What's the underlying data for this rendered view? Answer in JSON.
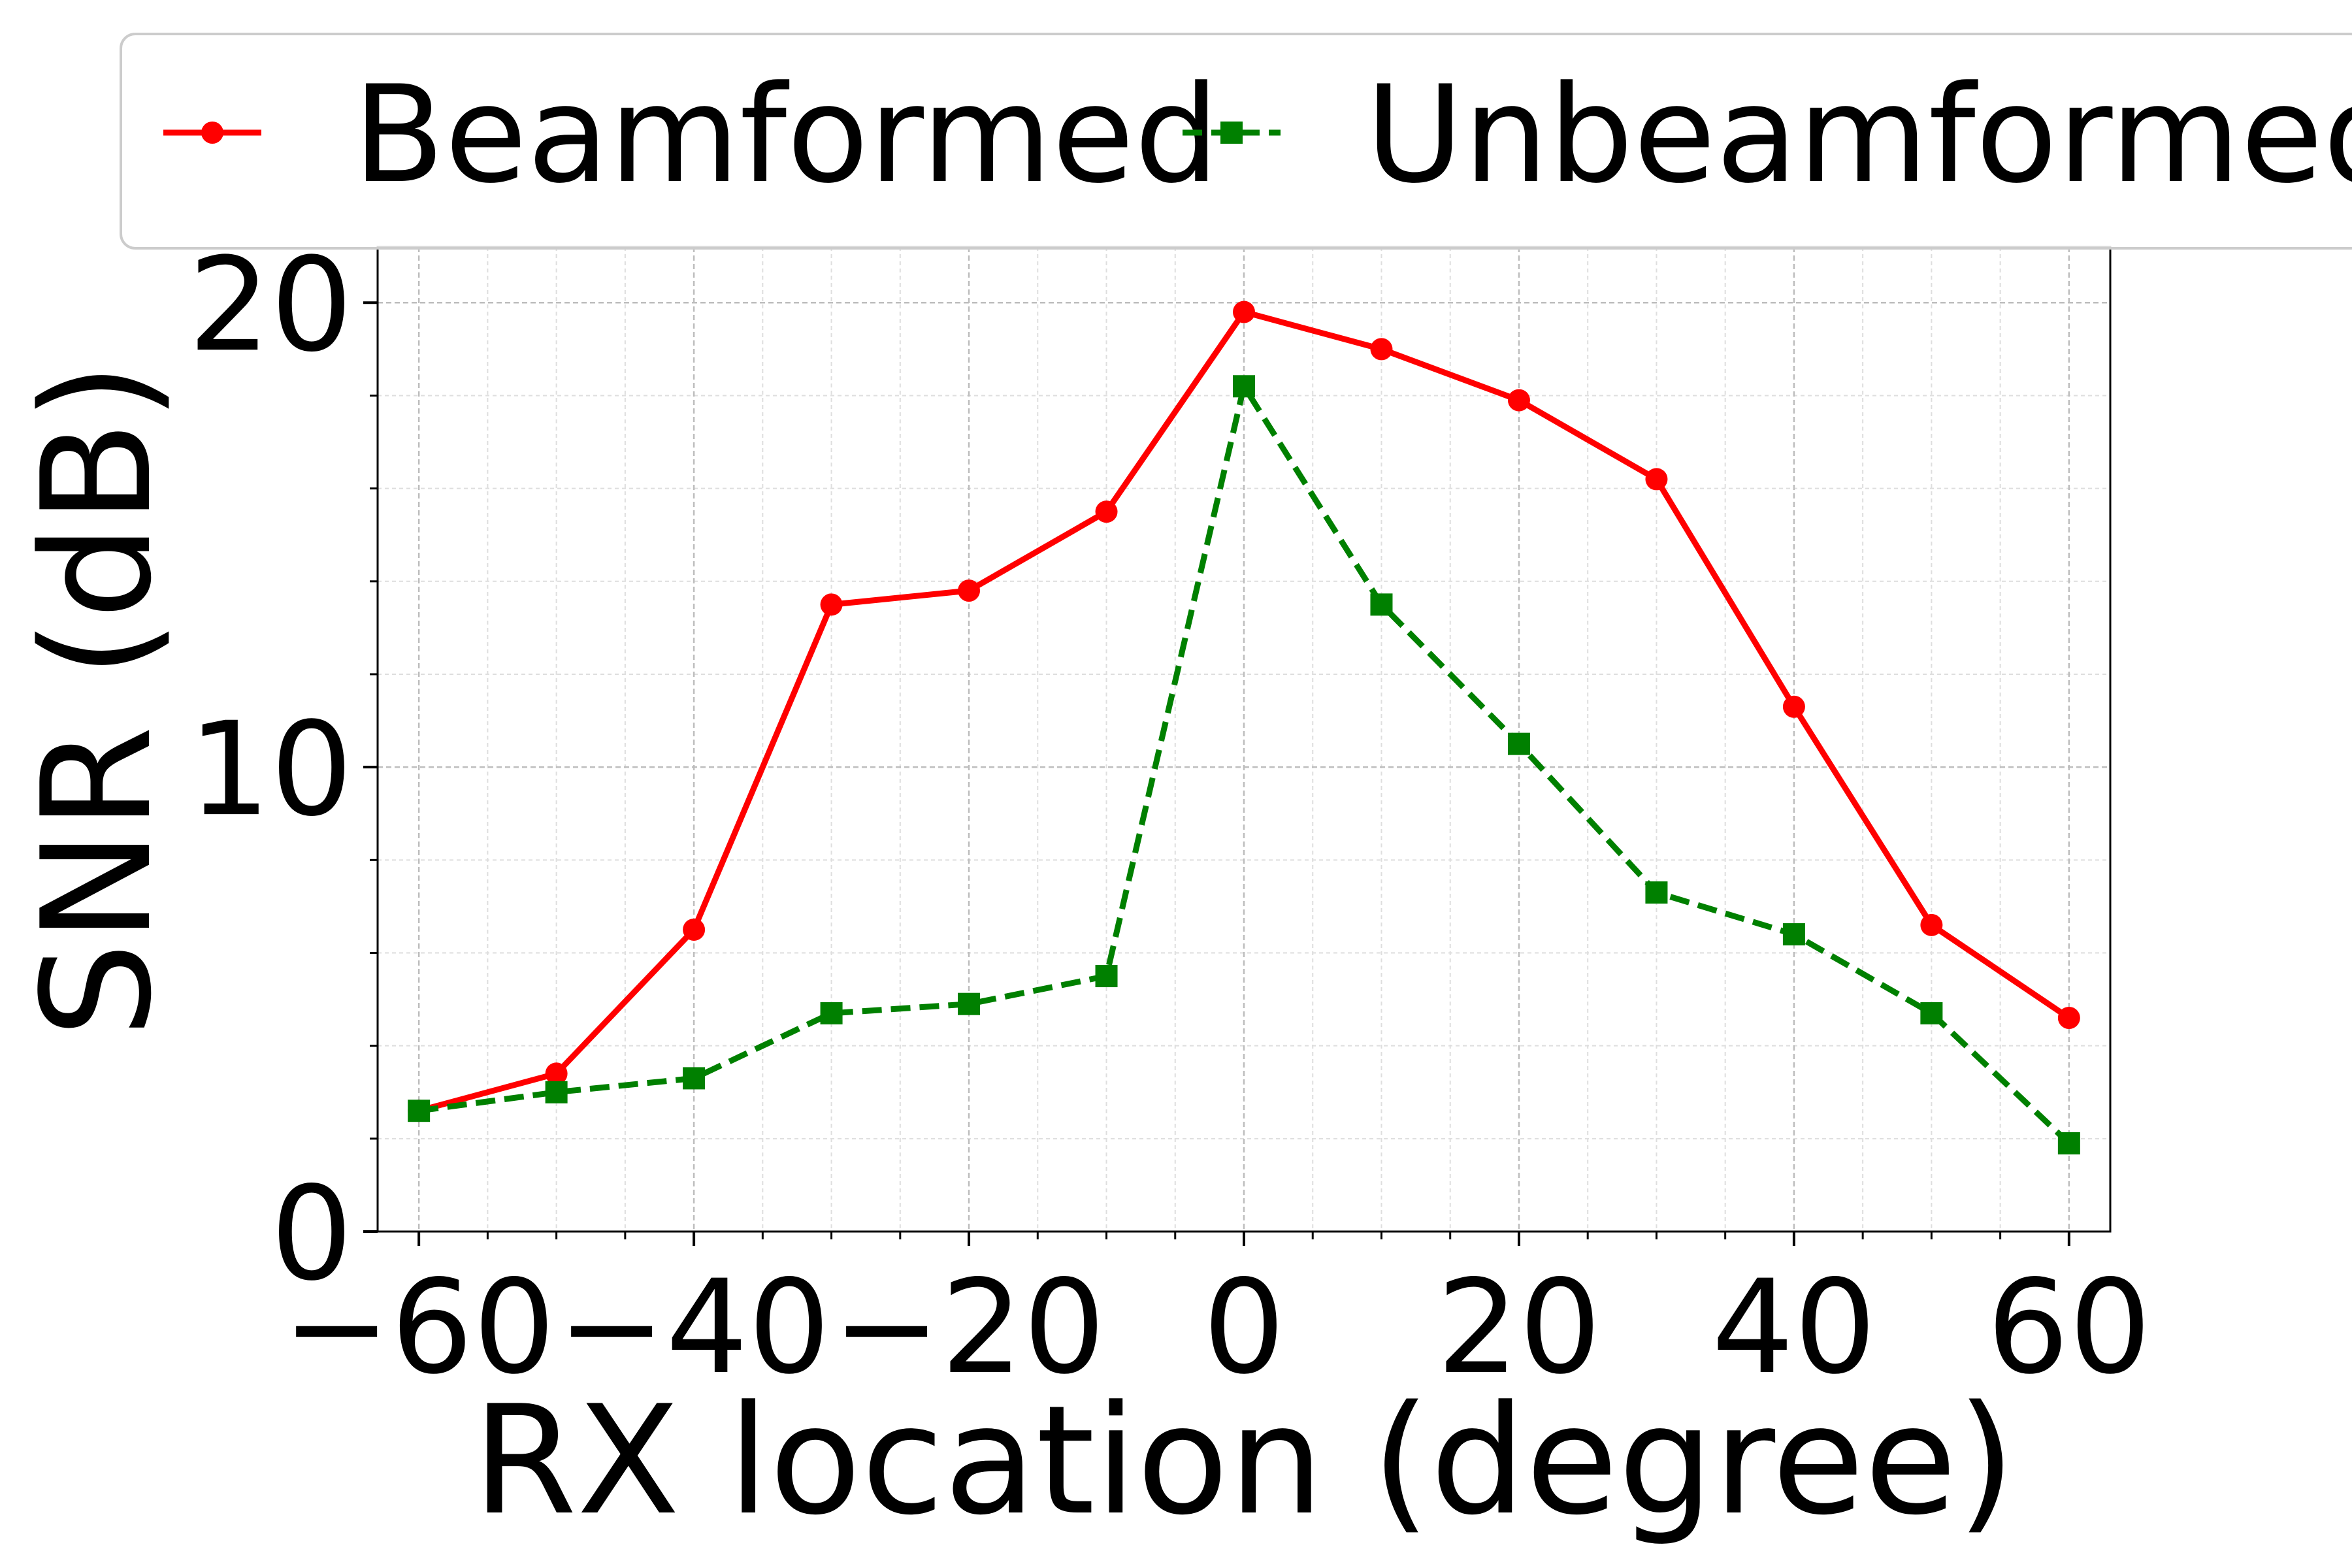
{
  "chart_data": {
    "type": "line",
    "xlabel": "RX location (degree)",
    "ylabel": "SNR (dB)",
    "x": [
      -60,
      -50,
      -40,
      -30,
      -20,
      -10,
      0,
      10,
      20,
      30,
      40,
      50,
      60
    ],
    "x_ticks": [
      -60,
      -40,
      -20,
      0,
      20,
      40,
      60
    ],
    "x_tick_labels": [
      "−60",
      "−40",
      "−20",
      "0",
      "20",
      "40",
      "60"
    ],
    "y_ticks": [
      0,
      10,
      20
    ],
    "y_tick_labels": [
      "0",
      "10",
      "20"
    ],
    "xlim": [
      -63,
      63
    ],
    "ylim": [
      0,
      21.2
    ],
    "grid": true,
    "legend_position": "top",
    "series": [
      {
        "name": "Beamformed",
        "color": "#ff0000",
        "line_style": "solid",
        "marker": "circle",
        "values": [
          2.6,
          3.4,
          6.5,
          13.5,
          13.8,
          15.5,
          19.8,
          19.0,
          17.9,
          16.2,
          11.3,
          6.6,
          4.6
        ]
      },
      {
        "name": "Unbeamformed",
        "color": "#008000",
        "line_style": "dashed",
        "marker": "square",
        "values": [
          2.6,
          3.0,
          3.3,
          4.7,
          4.9,
          5.5,
          18.2,
          13.5,
          10.5,
          7.3,
          6.4,
          4.7,
          1.9
        ]
      }
    ]
  }
}
